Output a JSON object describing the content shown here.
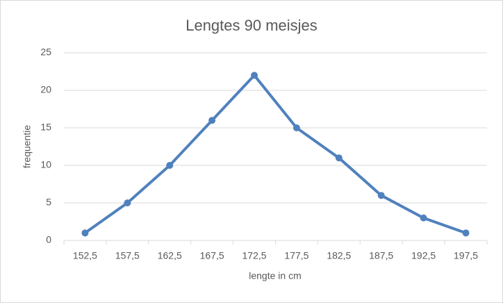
{
  "chart_data": {
    "type": "line",
    "title": "Lengtes 90 meisjes",
    "x_label": "lengte in cm",
    "y_label": "frequentie",
    "categories": [
      "152,5",
      "157,5",
      "162,5",
      "167,5",
      "172,5",
      "177,5",
      "182,5",
      "187,5",
      "192,5",
      "197,5"
    ],
    "values": [
      1,
      5,
      10,
      16,
      22,
      15,
      11,
      6,
      3,
      1
    ],
    "color": "#4f81bd",
    "ylim": [
      0,
      25
    ],
    "yticks": [
      0,
      5,
      10,
      15,
      20,
      25
    ],
    "grid": true
  }
}
